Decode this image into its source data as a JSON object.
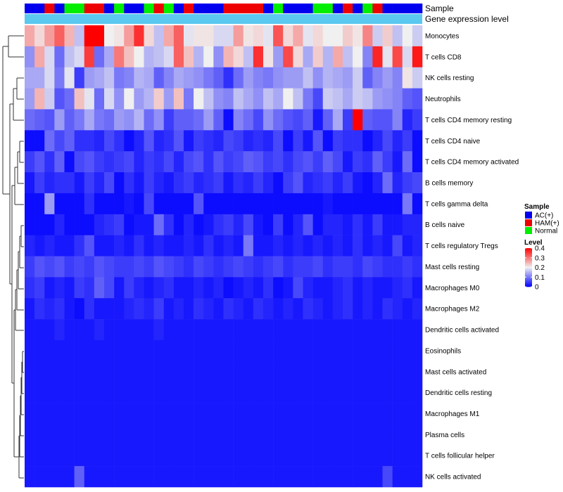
{
  "chart_data": {
    "type": "heatmap",
    "annotation_labels": [
      "Sample",
      "Gene expression level"
    ],
    "row_labels": [
      "Monocytes",
      "T cells CD8",
      "NK cells resting",
      "Neutrophils",
      "T cells CD4 memory resting",
      "T cells CD4 naive",
      "T cells CD4 memory activated",
      "B cells memory",
      "T cells gamma delta",
      "B cells naive",
      "T cells regulatory  Tregs",
      "Mast cells resting",
      "Macrophages M0",
      "Macrophages M2",
      "Dendritic cells activated",
      "Eosinophils",
      "Mast cells activated",
      "Dendritic cells resting",
      "Macrophages M1",
      "Plasma cells",
      "T cells follicular helper",
      "NK cells activated"
    ],
    "sample_groups": [
      "AC",
      "AC",
      "HAM",
      "AC",
      "Normal",
      "Normal",
      "HAM",
      "HAM",
      "AC",
      "Normal",
      "AC",
      "AC",
      "Normal",
      "HAM",
      "Normal",
      "AC",
      "HAM",
      "AC",
      "AC",
      "AC",
      "HAM",
      "HAM",
      "HAM",
      "HAM",
      "AC",
      "Normal",
      "AC",
      "AC",
      "AC",
      "Normal",
      "Normal",
      "AC",
      "HAM",
      "AC",
      "Normal",
      "HAM",
      "AC",
      "AC",
      "AC",
      "AC"
    ],
    "expression_annotation_color": "#5bc8f0",
    "values": [
      [
        0.26,
        0.22,
        0.27,
        0.32,
        0.25,
        0.16,
        0.4,
        0.4,
        0.2,
        0.21,
        0.27,
        0.36,
        0.22,
        0.16,
        0.26,
        0.32,
        0.19,
        0.21,
        0.21,
        0.18,
        0.18,
        0.27,
        0.21,
        0.22,
        0.19,
        0.33,
        0.22,
        0.26,
        0.19,
        0.22,
        0.2,
        0.2,
        0.23,
        0.21,
        0.29,
        0.17,
        0.23,
        0.16,
        0.2,
        0.17
      ],
      [
        0.12,
        0.26,
        0.18,
        0.09,
        0.16,
        0.18,
        0.35,
        0.09,
        0.14,
        0.3,
        0.24,
        0.2,
        0.15,
        0.16,
        0.18,
        0.32,
        0.24,
        0.15,
        0.2,
        0.12,
        0.25,
        0.22,
        0.16,
        0.36,
        0.21,
        0.13,
        0.34,
        0.22,
        0.14,
        0.23,
        0.15,
        0.26,
        0.16,
        0.2,
        0.11,
        0.37,
        0.19,
        0.34,
        0.18,
        0.38
      ],
      [
        0.14,
        0.14,
        0.18,
        0.1,
        0.19,
        0.05,
        0.13,
        0.14,
        0.16,
        0.1,
        0.11,
        0.15,
        0.14,
        0.08,
        0.11,
        0.14,
        0.13,
        0.12,
        0.1,
        0.08,
        0.04,
        0.09,
        0.13,
        0.11,
        0.1,
        0.12,
        0.13,
        0.13,
        0.16,
        0.12,
        0.15,
        0.14,
        0.13,
        0.17,
        0.08,
        0.11,
        0.13,
        0.11,
        0.21,
        0.17
      ],
      [
        0.13,
        0.25,
        0.17,
        0.07,
        0.09,
        0.24,
        0.19,
        0.09,
        0.18,
        0.12,
        0.2,
        0.13,
        0.15,
        0.23,
        0.13,
        0.24,
        0.1,
        0.2,
        0.16,
        0.12,
        0.11,
        0.16,
        0.14,
        0.12,
        0.16,
        0.14,
        0.2,
        0.16,
        0.1,
        0.06,
        0.17,
        0.16,
        0.14,
        0.17,
        0.16,
        0.13,
        0.12,
        0.11,
        0.08,
        0.07
      ],
      [
        0.09,
        0.08,
        0.07,
        0.13,
        0.08,
        0.1,
        0.14,
        0.1,
        0.09,
        0.13,
        0.12,
        0.15,
        0.09,
        0.12,
        0.05,
        0.08,
        0.08,
        0.09,
        0.13,
        0.08,
        0.01,
        0.11,
        0.09,
        0.06,
        0.12,
        0.09,
        0.07,
        0.06,
        0.08,
        0.02,
        0.08,
        0.14,
        0.05,
        0.4,
        0.08,
        0.07,
        0.07,
        0.11,
        0.03,
        0.05
      ],
      [
        0.01,
        0.01,
        0.09,
        0.06,
        0.08,
        0.04,
        0.04,
        0.03,
        0.06,
        0.04,
        0.01,
        0.03,
        0.07,
        0.03,
        0.04,
        0.07,
        0.02,
        0.05,
        0.04,
        0.03,
        0.06,
        0.05,
        0.03,
        0.04,
        0.03,
        0.06,
        0.01,
        0.05,
        0.02,
        0.07,
        0.01,
        0.05,
        0.04,
        0.04,
        0.01,
        0.03,
        0.06,
        0.03,
        0.05,
        0.01
      ],
      [
        0.05,
        0.07,
        0.04,
        0.08,
        0.01,
        0.06,
        0.07,
        0.05,
        0.04,
        0.05,
        0.06,
        0.03,
        0.05,
        0.04,
        0.06,
        0.03,
        0.06,
        0.07,
        0.04,
        0.07,
        0.05,
        0.06,
        0.08,
        0.07,
        0.05,
        0.06,
        0.04,
        0.06,
        0.07,
        0.05,
        0.08,
        0.06,
        0.02,
        0.05,
        0.04,
        0.08,
        0.05,
        0.02,
        0.09,
        0.01
      ],
      [
        0.02,
        0.05,
        0.03,
        0.04,
        0.04,
        0.02,
        0.05,
        0.03,
        0.06,
        0.01,
        0.04,
        0.02,
        0.05,
        0.03,
        0.02,
        0.04,
        0.05,
        0.03,
        0.04,
        0.05,
        0.02,
        0.04,
        0.03,
        0.05,
        0.03,
        0.01,
        0.05,
        0.07,
        0.03,
        0.04,
        0.05,
        0.03,
        0.05,
        0.02,
        0.01,
        0.03,
        0.09,
        0.03,
        0.05,
        0.06
      ],
      [
        0.01,
        0.01,
        0.13,
        0.01,
        0.01,
        0.01,
        0.04,
        0.01,
        0.01,
        0.01,
        0.02,
        0.01,
        0.06,
        0.01,
        0.01,
        0.01,
        0.01,
        0.07,
        0.01,
        0.01,
        0.01,
        0.01,
        0.01,
        0.01,
        0.01,
        0.01,
        0.01,
        0.01,
        0.01,
        0.01,
        0.02,
        0.01,
        0.01,
        0.01,
        0.01,
        0.01,
        0.01,
        0.01,
        0.1,
        0.01
      ],
      [
        0.01,
        0.01,
        0.01,
        0.03,
        0.01,
        0.01,
        0.01,
        0.03,
        0.04,
        0.05,
        0.01,
        0.02,
        0.02,
        0.09,
        0.04,
        0.01,
        0.03,
        0.01,
        0.02,
        0.04,
        0.05,
        0.03,
        0.06,
        0.02,
        0.01,
        0.05,
        0.01,
        0.03,
        0.07,
        0.01,
        0.03,
        0.03,
        0.02,
        0.04,
        0.02,
        0.05,
        0.02,
        0.02,
        0.03,
        0.03
      ],
      [
        0.03,
        0.02,
        0.03,
        0.02,
        0.02,
        0.04,
        0.07,
        0.02,
        0.02,
        0.03,
        0.02,
        0.04,
        0.02,
        0.03,
        0.02,
        0.02,
        0.03,
        0.02,
        0.04,
        0.02,
        0.03,
        0.02,
        0.1,
        0.02,
        0.02,
        0.03,
        0.02,
        0.03,
        0.02,
        0.03,
        0.02,
        0.03,
        0.02,
        0.04,
        0.02,
        0.03,
        0.02,
        0.06,
        0.02,
        0.03
      ],
      [
        0.05,
        0.07,
        0.06,
        0.07,
        0.05,
        0.06,
        0.05,
        0.07,
        0.06,
        0.05,
        0.05,
        0.06,
        0.05,
        0.07,
        0.06,
        0.05,
        0.04,
        0.06,
        0.05,
        0.04,
        0.05,
        0.06,
        0.05,
        0.04,
        0.05,
        0.06,
        0.04,
        0.05,
        0.05,
        0.06,
        0.04,
        0.05,
        0.05,
        0.04,
        0.06,
        0.05,
        0.04,
        0.04,
        0.05,
        0.04
      ],
      [
        0.04,
        0.05,
        0.02,
        0.03,
        0.02,
        0.05,
        0.04,
        0.08,
        0.06,
        0.02,
        0.05,
        0.03,
        0.02,
        0.03,
        0.04,
        0.02,
        0.02,
        0.03,
        0.02,
        0.03,
        0.01,
        0.02,
        0.03,
        0.02,
        0.04,
        0.01,
        0.02,
        0.06,
        0.03,
        0.02,
        0.02,
        0.03,
        0.04,
        0.02,
        0.03,
        0.02,
        0.02,
        0.03,
        0.04,
        0.02
      ],
      [
        0.02,
        0.04,
        0.03,
        0.04,
        0.02,
        0.01,
        0.04,
        0.02,
        0.02,
        0.02,
        0.03,
        0.04,
        0.03,
        0.05,
        0.02,
        0.03,
        0.02,
        0.04,
        0.03,
        0.02,
        0.04,
        0.03,
        0.02,
        0.04,
        0.03,
        0.02,
        0.03,
        0.02,
        0.04,
        0.03,
        0.02,
        0.03,
        0.04,
        0.02,
        0.03,
        0.02,
        0.04,
        0.03,
        0.02,
        0.03
      ],
      [
        0.02,
        0.02,
        0.02,
        0.03,
        0.02,
        0.02,
        0.02,
        0.03,
        0.02,
        0.02,
        0.02,
        0.02,
        0.02,
        0.03,
        0.02,
        0.02,
        0.02,
        0.02,
        0.02,
        0.02,
        0.02,
        0.02,
        0.02,
        0.02,
        0.02,
        0.02,
        0.02,
        0.02,
        0.02,
        0.02,
        0.02,
        0.02,
        0.02,
        0.02,
        0.02,
        0.02,
        0.02,
        0.02,
        0.02,
        0.02
      ],
      [
        0.02,
        0.02,
        0.02,
        0.02,
        0.02,
        0.02,
        0.02,
        0.02,
        0.02,
        0.02,
        0.02,
        0.02,
        0.02,
        0.02,
        0.02,
        0.02,
        0.02,
        0.02,
        0.02,
        0.02,
        0.02,
        0.02,
        0.02,
        0.02,
        0.02,
        0.02,
        0.02,
        0.02,
        0.02,
        0.02,
        0.02,
        0.02,
        0.02,
        0.02,
        0.02,
        0.02,
        0.02,
        0.02,
        0.02,
        0.02
      ],
      [
        0.02,
        0.02,
        0.02,
        0.02,
        0.02,
        0.02,
        0.02,
        0.02,
        0.02,
        0.02,
        0.02,
        0.02,
        0.02,
        0.02,
        0.02,
        0.02,
        0.02,
        0.02,
        0.02,
        0.02,
        0.02,
        0.02,
        0.02,
        0.02,
        0.02,
        0.02,
        0.02,
        0.02,
        0.02,
        0.02,
        0.02,
        0.02,
        0.02,
        0.02,
        0.02,
        0.02,
        0.02,
        0.02,
        0.02,
        0.02
      ],
      [
        0.02,
        0.02,
        0.02,
        0.02,
        0.02,
        0.02,
        0.02,
        0.02,
        0.02,
        0.02,
        0.02,
        0.02,
        0.02,
        0.02,
        0.02,
        0.02,
        0.02,
        0.02,
        0.02,
        0.02,
        0.02,
        0.02,
        0.02,
        0.02,
        0.02,
        0.02,
        0.02,
        0.02,
        0.02,
        0.02,
        0.02,
        0.02,
        0.02,
        0.02,
        0.02,
        0.02,
        0.02,
        0.02,
        0.02,
        0.02
      ],
      [
        0.02,
        0.02,
        0.02,
        0.02,
        0.02,
        0.02,
        0.02,
        0.02,
        0.02,
        0.02,
        0.02,
        0.02,
        0.02,
        0.02,
        0.02,
        0.02,
        0.02,
        0.02,
        0.02,
        0.02,
        0.02,
        0.02,
        0.02,
        0.02,
        0.02,
        0.02,
        0.02,
        0.02,
        0.02,
        0.02,
        0.02,
        0.02,
        0.02,
        0.02,
        0.02,
        0.02,
        0.02,
        0.02,
        0.02,
        0.02
      ],
      [
        0.02,
        0.02,
        0.02,
        0.02,
        0.02,
        0.02,
        0.02,
        0.02,
        0.02,
        0.02,
        0.02,
        0.02,
        0.02,
        0.02,
        0.02,
        0.02,
        0.02,
        0.02,
        0.02,
        0.02,
        0.02,
        0.02,
        0.02,
        0.02,
        0.02,
        0.02,
        0.02,
        0.02,
        0.02,
        0.02,
        0.02,
        0.02,
        0.02,
        0.02,
        0.02,
        0.02,
        0.02,
        0.02,
        0.02,
        0.02
      ],
      [
        0.02,
        0.02,
        0.02,
        0.02,
        0.02,
        0.02,
        0.02,
        0.02,
        0.02,
        0.02,
        0.02,
        0.02,
        0.02,
        0.02,
        0.02,
        0.02,
        0.02,
        0.02,
        0.02,
        0.02,
        0.02,
        0.02,
        0.02,
        0.02,
        0.02,
        0.02,
        0.02,
        0.02,
        0.02,
        0.02,
        0.02,
        0.02,
        0.02,
        0.02,
        0.02,
        0.02,
        0.02,
        0.02,
        0.02,
        0.02
      ],
      [
        0.02,
        0.02,
        0.02,
        0.02,
        0.02,
        0.08,
        0.02,
        0.02,
        0.02,
        0.02,
        0.02,
        0.02,
        0.02,
        0.02,
        0.02,
        0.02,
        0.02,
        0.02,
        0.02,
        0.02,
        0.02,
        0.02,
        0.02,
        0.02,
        0.02,
        0.02,
        0.02,
        0.02,
        0.02,
        0.02,
        0.02,
        0.02,
        0.02,
        0.02,
        0.02,
        0.02,
        0.06,
        0.02,
        0.02,
        0.02
      ]
    ],
    "color_scale": {
      "low": "#0000ff",
      "mid": "#f0f0f0",
      "high": "#ff0000",
      "range": [
        0,
        0.4
      ],
      "mid_value": 0.2
    },
    "legend_sample": {
      "title": "Sample",
      "items": [
        {
          "key": "AC",
          "label": "AC(+)",
          "color": "#0000ee"
        },
        {
          "key": "HAM",
          "label": "HAM(+)",
          "color": "#ee0000"
        },
        {
          "key": "Normal",
          "label": "Normal",
          "color": "#00ee00"
        }
      ]
    },
    "legend_level": {
      "title": "Level",
      "ticks": [
        {
          "value": 0.4,
          "label": "0.4"
        },
        {
          "value": 0.3,
          "label": "0.3"
        },
        {
          "value": 0.2,
          "label": "0.2"
        },
        {
          "value": 0.1,
          "label": "0.1"
        },
        {
          "value": 0,
          "label": "0"
        }
      ]
    }
  }
}
